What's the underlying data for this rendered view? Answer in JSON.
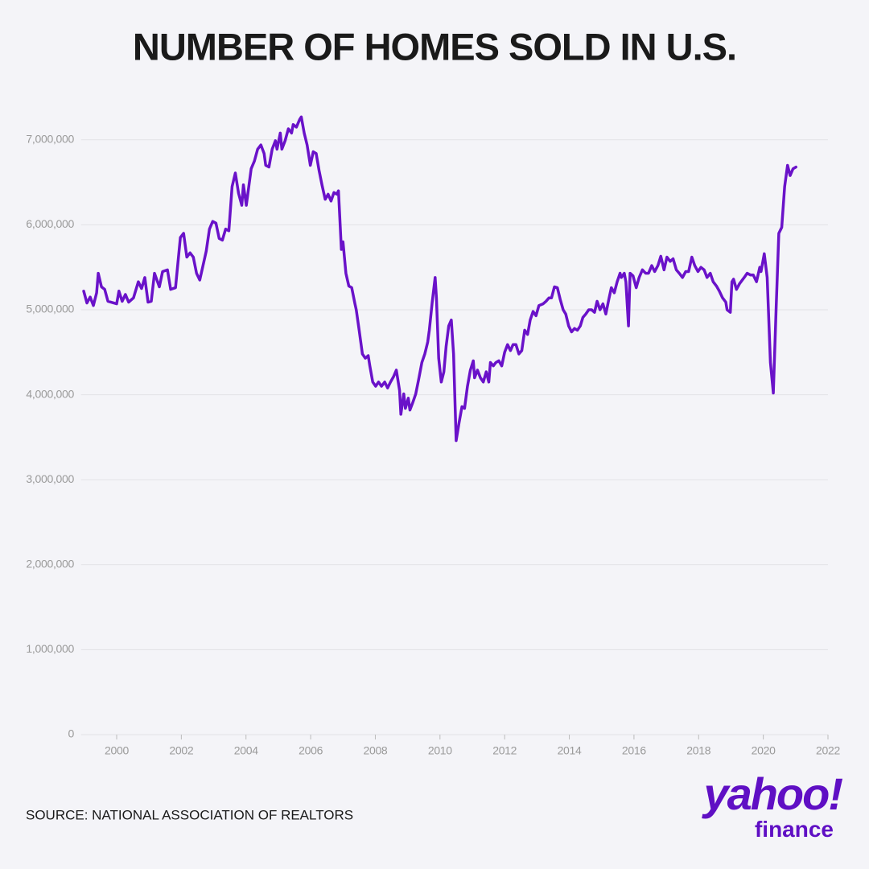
{
  "chart_data": {
    "type": "line",
    "title": "NUMBER OF HOMES SOLD IN U.S.",
    "source": "SOURCE: NATIONAL ASSOCIATION OF REALTORS",
    "logo": {
      "brand": "yahoo!",
      "product": "finance"
    },
    "color": "#6a12c9",
    "grid": true,
    "xlim": [
      1998.9,
      2022
    ],
    "xticks": [
      2000,
      2002,
      2004,
      2006,
      2008,
      2010,
      2012,
      2014,
      2016,
      2018,
      2020,
      2022
    ],
    "ylim": [
      0,
      7500000
    ],
    "yticks": [
      0,
      {
        "value": 1000000,
        "label": "1,000,000"
      },
      {
        "value": 2000000,
        "label": "2,000,000"
      },
      {
        "value": 3000000,
        "label": "3,000,000"
      },
      {
        "value": 4000000,
        "label": "4,000,000"
      },
      {
        "value": 5000000,
        "label": "5,000,000"
      },
      {
        "value": 6000000,
        "label": "6,000,000"
      },
      {
        "value": 7000000,
        "label": "7,000,000"
      }
    ],
    "x": [
      1998.98,
      1999.08,
      1999.18,
      1999.28,
      1999.38,
      1999.43,
      1999.53,
      1999.63,
      1999.73,
      2000.0,
      2000.07,
      2000.17,
      2000.27,
      2000.37,
      2000.52,
      2000.67,
      2000.77,
      2000.87,
      2000.97,
      2001.07,
      2001.17,
      2001.32,
      2001.42,
      2001.57,
      2001.67,
      2001.82,
      2001.97,
      2002.07,
      2002.17,
      2002.27,
      2002.37,
      2002.47,
      2002.57,
      2002.67,
      2002.77,
      2002.87,
      2002.97,
      2003.07,
      2003.17,
      2003.27,
      2003.37,
      2003.47,
      2003.57,
      2003.67,
      2003.77,
      2003.87,
      2003.92,
      2004.01,
      2004.16,
      2004.26,
      2004.36,
      2004.46,
      2004.56,
      2004.61,
      2004.71,
      2004.81,
      2004.91,
      2004.96,
      2005.06,
      2005.11,
      2005.21,
      2005.31,
      2005.41,
      2005.46,
      2005.56,
      2005.66,
      2005.71,
      2005.8,
      2005.89,
      2005.99,
      2006.08,
      2006.17,
      2006.26,
      2006.35,
      2006.45,
      2006.54,
      2006.63,
      2006.72,
      2006.81,
      2006.86,
      2006.95,
      2007.0,
      2007.09,
      2007.18,
      2007.27,
      2007.37,
      2007.41,
      2007.5,
      2007.6,
      2007.69,
      2007.78,
      2007.83,
      2007.92,
      2008.01,
      2008.1,
      2008.19,
      2008.29,
      2008.38,
      2008.47,
      2008.56,
      2008.65,
      2008.75,
      2008.79,
      2008.88,
      2008.93,
      2009.02,
      2009.07,
      2009.16,
      2009.25,
      2009.34,
      2009.44,
      2009.53,
      2009.62,
      2009.67,
      2009.76,
      2009.85,
      2009.89,
      2009.96,
      2010.04,
      2010.12,
      2010.19,
      2010.27,
      2010.35,
      2010.42,
      2010.5,
      2010.59,
      2010.68,
      2010.76,
      2010.85,
      2010.94,
      2011.03,
      2011.07,
      2011.16,
      2011.25,
      2011.34,
      2011.43,
      2011.51,
      2011.56,
      2011.65,
      2011.73,
      2011.82,
      2011.91,
      2012.0,
      2012.09,
      2012.18,
      2012.26,
      2012.35,
      2012.44,
      2012.53,
      2012.62,
      2012.71,
      2012.79,
      2012.88,
      2012.97,
      2013.06,
      2013.19,
      2013.28,
      2013.37,
      2013.45,
      2013.54,
      2013.63,
      2013.72,
      2013.81,
      2013.89,
      2013.98,
      2014.07,
      2014.16,
      2014.25,
      2014.34,
      2014.42,
      2014.51,
      2014.6,
      2014.69,
      2014.78,
      2014.86,
      2014.95,
      2015.04,
      2015.13,
      2015.22,
      2015.3,
      2015.39,
      2015.48,
      2015.57,
      2015.61,
      2015.7,
      2015.75,
      2015.83,
      2015.88,
      2015.97,
      2016.07,
      2016.16,
      2016.26,
      2016.36,
      2016.45,
      2016.55,
      2016.64,
      2016.74,
      2016.83,
      2016.93,
      2017.02,
      2017.12,
      2017.21,
      2017.31,
      2017.4,
      2017.5,
      2017.6,
      2017.69,
      2017.79,
      2017.88,
      2017.98,
      2018.07,
      2018.17,
      2018.26,
      2018.36,
      2018.45,
      2018.55,
      2018.64,
      2018.74,
      2018.84,
      2018.88,
      2018.98,
      2019.03,
      2019.08,
      2019.17,
      2019.27,
      2019.31,
      2019.41,
      2019.5,
      2019.6,
      2019.69,
      2019.79,
      2019.89,
      2019.93,
      2020.03,
      2020.12,
      2020.22,
      2020.31,
      2020.4,
      2020.48,
      2020.57,
      2020.66,
      2020.75,
      2020.83,
      2020.92,
      2021.01
    ],
    "values": [
      5220000,
      5080000,
      5150000,
      5050000,
      5200000,
      5430000,
      5270000,
      5240000,
      5100000,
      5070000,
      5220000,
      5100000,
      5180000,
      5090000,
      5140000,
      5330000,
      5250000,
      5380000,
      5090000,
      5100000,
      5430000,
      5270000,
      5450000,
      5470000,
      5240000,
      5260000,
      5850000,
      5900000,
      5620000,
      5670000,
      5620000,
      5430000,
      5350000,
      5520000,
      5690000,
      5950000,
      6040000,
      6020000,
      5840000,
      5820000,
      5950000,
      5930000,
      6450000,
      6610000,
      6370000,
      6230000,
      6470000,
      6230000,
      6660000,
      6750000,
      6890000,
      6940000,
      6840000,
      6700000,
      6680000,
      6890000,
      6990000,
      6890000,
      7080000,
      6890000,
      6990000,
      7130000,
      7080000,
      7180000,
      7150000,
      7240000,
      7270000,
      7080000,
      6940000,
      6700000,
      6860000,
      6840000,
      6640000,
      6470000,
      6300000,
      6360000,
      6280000,
      6380000,
      6360000,
      6400000,
      5710000,
      5800000,
      5430000,
      5280000,
      5260000,
      5070000,
      5000000,
      4760000,
      4480000,
      4430000,
      4460000,
      4340000,
      4150000,
      4100000,
      4150000,
      4100000,
      4150000,
      4080000,
      4150000,
      4210000,
      4290000,
      4050000,
      3770000,
      4010000,
      3840000,
      3960000,
      3820000,
      3910000,
      4010000,
      4180000,
      4380000,
      4480000,
      4620000,
      4760000,
      5090000,
      5380000,
      5140000,
      4430000,
      4150000,
      4270000,
      4570000,
      4810000,
      4880000,
      4480000,
      3460000,
      3670000,
      3860000,
      3840000,
      4100000,
      4290000,
      4400000,
      4200000,
      4290000,
      4200000,
      4150000,
      4270000,
      4150000,
      4380000,
      4340000,
      4380000,
      4400000,
      4340000,
      4500000,
      4590000,
      4520000,
      4590000,
      4590000,
      4480000,
      4520000,
      4760000,
      4710000,
      4880000,
      4980000,
      4930000,
      5050000,
      5070000,
      5100000,
      5140000,
      5140000,
      5270000,
      5260000,
      5120000,
      5000000,
      4950000,
      4810000,
      4740000,
      4780000,
      4760000,
      4810000,
      4910000,
      4950000,
      5000000,
      5000000,
      4970000,
      5100000,
      5000000,
      5070000,
      4950000,
      5120000,
      5260000,
      5200000,
      5330000,
      5430000,
      5380000,
      5430000,
      5330000,
      4810000,
      5430000,
      5400000,
      5260000,
      5380000,
      5470000,
      5430000,
      5430000,
      5520000,
      5450000,
      5520000,
      5630000,
      5470000,
      5620000,
      5570000,
      5600000,
      5470000,
      5430000,
      5380000,
      5450000,
      5450000,
      5620000,
      5520000,
      5450000,
      5500000,
      5470000,
      5380000,
      5430000,
      5330000,
      5280000,
      5220000,
      5140000,
      5090000,
      5000000,
      4970000,
      5330000,
      5360000,
      5240000,
      5310000,
      5330000,
      5380000,
      5430000,
      5410000,
      5410000,
      5330000,
      5500000,
      5450000,
      5660000,
      5380000,
      4380000,
      4020000,
      5050000,
      5900000,
      5970000,
      6450000,
      6700000,
      6580000,
      6660000,
      6680000
    ]
  }
}
